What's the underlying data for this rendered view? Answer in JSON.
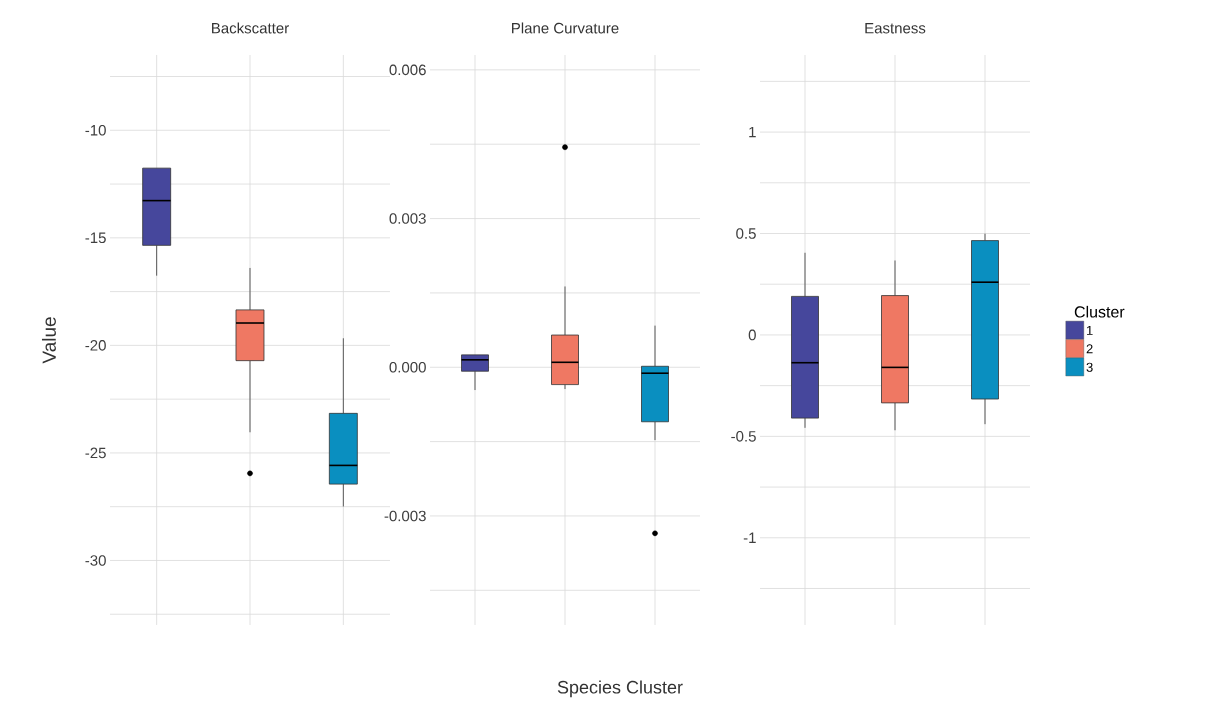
{
  "chart_data": [
    {
      "type": "box",
      "title": "Backscatter",
      "ylabel": "Value",
      "categories": [
        null,
        null,
        null
      ],
      "tick_labels": "y",
      "grid": true,
      "legend": false,
      "ylim": [
        -33,
        -6.5
      ],
      "yticks": [
        {
          "value": -32.5,
          "label": null
        },
        {
          "value": -30,
          "label": "-30"
        },
        {
          "value": -27.5,
          "label": null
        },
        {
          "value": -25,
          "label": "-25"
        },
        {
          "value": -22.5,
          "label": null
        },
        {
          "value": -20,
          "label": "-20"
        },
        {
          "value": -17.5,
          "label": null
        },
        {
          "value": -15,
          "label": "-15"
        },
        {
          "value": -12.5,
          "label": null
        },
        {
          "value": -10,
          "label": "-10"
        },
        {
          "value": -7.5,
          "label": null
        }
      ],
      "series": [
        {
          "color": "#46479c",
          "boxes": [
            {
              "low": -16.76,
              "q1": -15.35,
              "median": -13.27,
              "q3": -11.76,
              "high": -11.76
            },
            null,
            null
          ]
        },
        {
          "color": "#ef7863",
          "boxes": [
            null,
            {
              "low": -24.04,
              "q1": -20.71,
              "median": -18.96,
              "q3": -18.35,
              "high": -16.4,
              "outliers": [
                -25.95
              ]
            },
            null
          ]
        },
        {
          "color": "#0a8fc0",
          "boxes": [
            null,
            null,
            {
              "low": -27.49,
              "q1": -26.45,
              "median": -25.58,
              "q3": -23.16,
              "high": -19.67
            }
          ]
        }
      ]
    },
    {
      "type": "box",
      "title": "Plane Curvature",
      "xlabel": "Species Cluster",
      "categories": [
        null,
        null,
        null
      ],
      "tick_labels": "y",
      "grid": true,
      "legend": false,
      "ylim": [
        -0.0052,
        0.0063
      ],
      "yticks": [
        {
          "value": -0.0045,
          "label": null
        },
        {
          "value": -0.003,
          "label": "-0.003"
        },
        {
          "value": -0.0015,
          "label": null
        },
        {
          "value": 0,
          "label": "0.000"
        },
        {
          "value": 0.0015,
          "label": null
        },
        {
          "value": 0.003,
          "label": "0.003"
        },
        {
          "value": 0.0045,
          "label": null
        },
        {
          "value": 0.006,
          "label": "0.006"
        }
      ],
      "series": [
        {
          "color": "#46479c",
          "boxes": [
            {
              "low": -0.00046,
              "q1": -8e-05,
              "median": 0.00015,
              "q3": 0.00025,
              "high": 0.00025
            },
            null,
            null
          ]
        },
        {
          "color": "#ef7863",
          "boxes": [
            null,
            {
              "low": -0.00044,
              "q1": -0.00035,
              "median": 0.0001,
              "q3": 0.00065,
              "high": 0.00163,
              "outliers": [
                0.00444
              ]
            },
            null
          ]
        },
        {
          "color": "#0a8fc0",
          "boxes": [
            null,
            null,
            {
              "low": -0.00147,
              "q1": -0.0011,
              "median": -0.00012,
              "q3": 2e-05,
              "high": 0.00084,
              "outliers": [
                -0.00335
              ]
            }
          ]
        }
      ]
    },
    {
      "type": "box",
      "title": "Eastness",
      "legend_title": "Cluster",
      "categories": [
        null,
        null,
        null
      ],
      "tick_labels": "y",
      "grid": true,
      "legend": "right",
      "ylim": [
        -1.43,
        1.38
      ],
      "yticks": [
        {
          "value": -1.25,
          "label": null
        },
        {
          "value": -1,
          "label": "-1"
        },
        {
          "value": -0.75,
          "label": null
        },
        {
          "value": -0.5,
          "label": "-0.5"
        },
        {
          "value": -0.25,
          "label": null
        },
        {
          "value": 0,
          "label": "0"
        },
        {
          "value": 0.25,
          "label": null
        },
        {
          "value": 0.5,
          "label": "0.5"
        },
        {
          "value": 0.75,
          "label": null
        },
        {
          "value": 1,
          "label": "1"
        },
        {
          "value": 1.25,
          "label": null
        }
      ],
      "series": [
        {
          "name": "1",
          "color": "#46479c",
          "boxes": [
            {
              "low": -0.458,
              "q1": -0.41,
              "median": -0.137,
              "q3": 0.19,
              "high": 0.405
            },
            null,
            null
          ]
        },
        {
          "name": "2",
          "color": "#ef7863",
          "boxes": [
            null,
            {
              "low": -0.47,
              "q1": -0.335,
              "median": -0.16,
              "q3": 0.194,
              "high": 0.367
            },
            null
          ]
        },
        {
          "name": "3",
          "color": "#0a8fc0",
          "boxes": [
            null,
            null,
            {
              "low": -0.44,
              "q1": -0.316,
              "median": 0.26,
              "q3": 0.465,
              "high": 0.499
            }
          ]
        }
      ]
    }
  ]
}
